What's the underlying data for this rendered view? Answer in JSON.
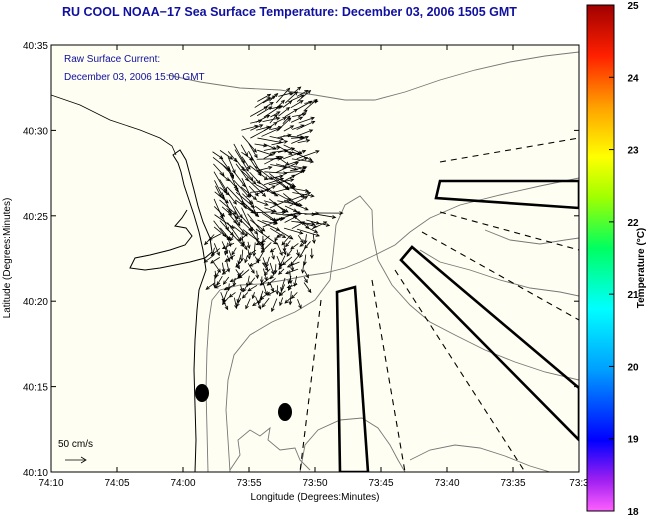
{
  "title": "RU COOL  NOAA−17  Sea Surface Temperature:  December 03, 2006 1505 GMT",
  "annotation": {
    "line1": "Raw Surface Current:",
    "line2": "December 03, 2006 15:00 GMT"
  },
  "scale_label": "50 cm/s",
  "axes": {
    "xlabel": "Longitude (Degrees:Minutes)",
    "ylabel": "Latitude (Degrees:Minutes)",
    "x_ticks": [
      "74:10",
      "74:05",
      "74:00",
      "73:55",
      "73:50",
      "73:45",
      "73:40",
      "73:35",
      "73:3"
    ],
    "y_ticks": [
      "40:35",
      "40:30",
      "40:25",
      "40:20",
      "40:15",
      "40:10"
    ]
  },
  "colorbar": {
    "label": "Temperature (°C)",
    "ticks": [
      "25",
      "24",
      "23",
      "22",
      "21",
      "20",
      "19",
      "18"
    ],
    "min": 18,
    "max": 25
  }
}
